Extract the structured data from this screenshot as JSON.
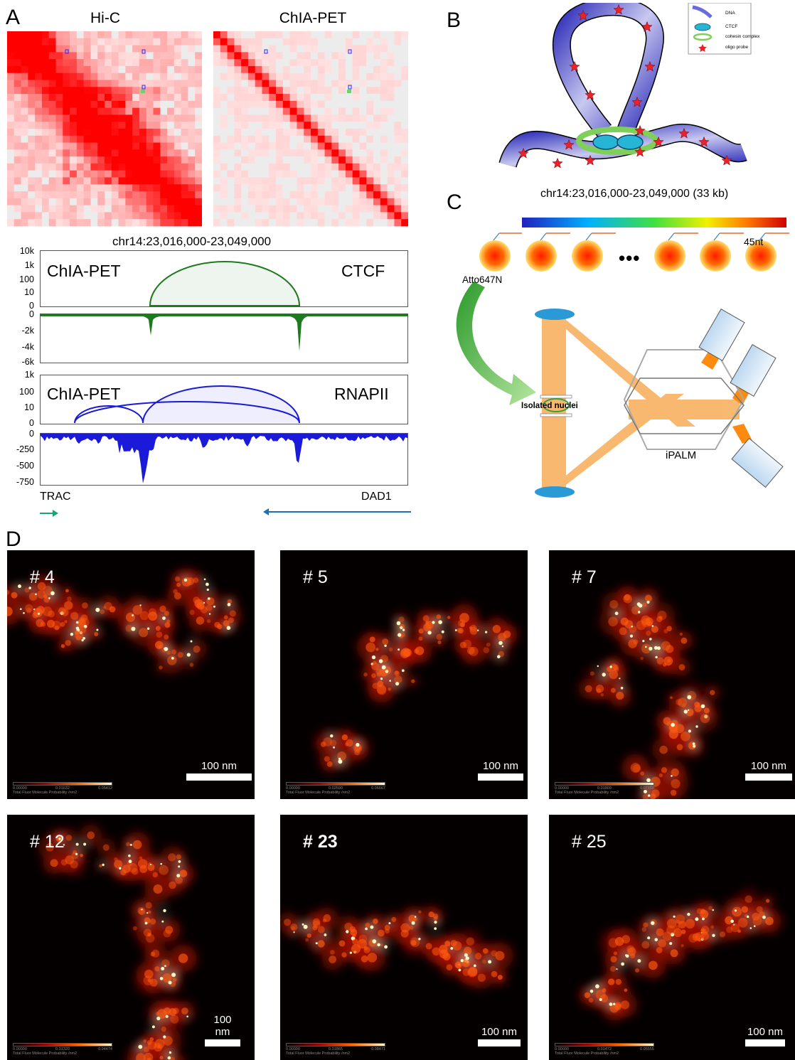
{
  "panels": {
    "a": "A",
    "b": "B",
    "c": "C",
    "d": "D"
  },
  "panel_a": {
    "hic_title": "Hi-C",
    "chiapet_title": "ChIA-PET",
    "region": "chr14:23,016,000-23,049,000",
    "ctcf_loop": {
      "label_left": "ChIA-PET",
      "label_right": "CTCF",
      "ticks": [
        "10k",
        "1k",
        "100",
        "10",
        "0"
      ]
    },
    "ctcf_cov": {
      "ticks": [
        "0",
        "-2k",
        "-4k",
        "-6k"
      ]
    },
    "rnapii_loop": {
      "label_left": "ChIA-PET",
      "label_right": "RNAPII",
      "ticks": [
        "1k",
        "100",
        "10",
        "0"
      ]
    },
    "rnapii_cov": {
      "ticks": [
        "0",
        "-250",
        "-500",
        "-750"
      ]
    },
    "gene_left": "TRAC",
    "gene_right": "DAD1",
    "colors": {
      "ctcf": "#1e7a1e",
      "rnapii": "#1a1ad8",
      "heat": "#ff0000",
      "gene_left_arrow": "#1aa37a",
      "gene_right_arrow": "#1a6fc0"
    }
  },
  "panel_b": {
    "legend": [
      "DNA",
      "CTCF",
      "cohesin complex",
      "oligo probe"
    ],
    "caption": "chr14:23,016,000-23,049,000 (33 kb)"
  },
  "panel_c": {
    "probe_length": "45nt",
    "ellipsis": "•••",
    "dye": "Atto647N",
    "sample": "Isolated nuclei",
    "instrument": "iPALM"
  },
  "panel_d": {
    "images": [
      {
        "id": "# 4",
        "bold": false,
        "scale": "100 nm",
        "cbar": [
          "0.00000",
          "0.01632",
          "0.05412"
        ]
      },
      {
        "id": "# 5",
        "bold": false,
        "scale": "100 nm",
        "cbar": [
          "0.00000",
          "0.02590",
          "0.06667"
        ]
      },
      {
        "id": "# 7",
        "bold": false,
        "scale": "100 nm",
        "cbar": [
          "0.00000",
          "0.01809",
          "0.07158"
        ]
      },
      {
        "id": "# 12",
        "bold": false,
        "scale": "100 nm",
        "cbar": [
          "0.00000",
          "0.01320",
          "0.04474"
        ]
      },
      {
        "id": "# 23",
        "bold": true,
        "scale": "100 nm",
        "cbar": [
          "0.00000",
          "0.01865",
          "0.08471"
        ]
      },
      {
        "id": "# 25",
        "bold": false,
        "scale": "100 nm",
        "cbar": [
          "0.00000",
          "0.01472",
          "0.05555"
        ]
      }
    ],
    "cbar_caption": "Total Fluor Molecule Probability /nm2"
  }
}
